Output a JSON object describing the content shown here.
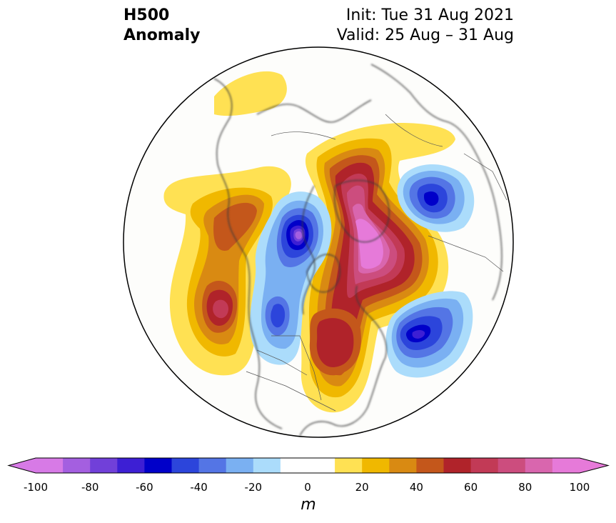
{
  "header": {
    "variable": "H500",
    "field": "Anomaly",
    "init": "Init: Tue 31 Aug 2021",
    "valid": "Valid: 25 Aug – 31 Aug"
  },
  "colorbar": {
    "unit": "m",
    "ticks": [
      "-100",
      "-80",
      "-60",
      "-40",
      "-20",
      "0",
      "20",
      "40",
      "60",
      "80",
      "100"
    ],
    "colors": [
      "#d77ae6",
      "#a45fe0",
      "#7140d9",
      "#3d1fd4",
      "#0000c9",
      "#2c45db",
      "#5475e5",
      "#7ab0f2",
      "#abdcfb",
      "#ffffff",
      "#ffffff",
      "#ffe153",
      "#f0b800",
      "#d98a12",
      "#c4571b",
      "#b0232a",
      "#c23a56",
      "#cc4d7e",
      "#d966ae",
      "#e67ad9"
    ]
  },
  "map": {
    "projection": "north-polar-stereographic",
    "features": [
      "coastlines",
      "country-borders",
      "state-borders"
    ]
  }
}
